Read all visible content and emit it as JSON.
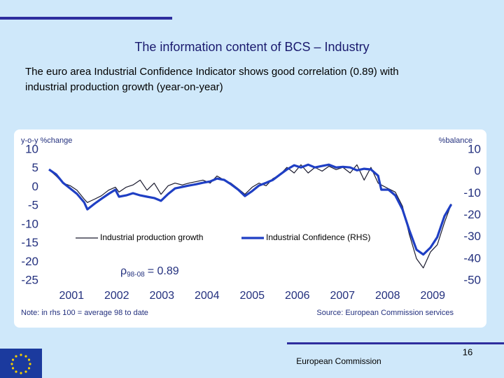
{
  "chart_data": {
    "type": "line",
    "title": "The information content of BCS – Industry",
    "subtitle": [
      "The euro area Industrial Confidence Indicator shows good correlation (0.89) with",
      "industrial production growth (year-on-year)"
    ],
    "y_label": "y-o-y %change",
    "y2_label": "%balance",
    "annotation": {
      "symbol": "ρ",
      "subscript": "98-08",
      "text": "= 0.89"
    },
    "note": "Note: in rhs 100 = average 98 to date",
    "source": "Source: European Commission services",
    "footer": "European Commission",
    "page_number": "16",
    "legend": "middle",
    "grid": false,
    "xlim": [
      2001,
      2010
    ],
    "xticks": [
      {
        "value": 2001.5,
        "label": "2001"
      },
      {
        "value": 2002.5,
        "label": "2002"
      },
      {
        "value": 2003.5,
        "label": "2003"
      },
      {
        "value": 2004.5,
        "label": "2004"
      },
      {
        "value": 2005.5,
        "label": "2005"
      },
      {
        "value": 2006.5,
        "label": "2006"
      },
      {
        "value": 2007.5,
        "label": "2007"
      },
      {
        "value": 2008.5,
        "label": "2008"
      },
      {
        "value": 2009.5,
        "label": "2009"
      }
    ],
    "ylim": [
      -25,
      10
    ],
    "yticks": [
      10,
      5,
      0,
      -5,
      -10,
      -15,
      -20,
      -25
    ],
    "y2lim": [
      -50,
      10
    ],
    "y2ticks": [
      10,
      0,
      -10,
      -20,
      -30,
      -40,
      -50
    ],
    "x": [
      2001.0,
      2001.16,
      2001.31,
      2001.47,
      2001.62,
      2001.78,
      2001.85,
      2002.01,
      2002.16,
      2002.32,
      2002.47,
      2002.55,
      2002.71,
      2002.86,
      2003.02,
      2003.17,
      2003.33,
      2003.48,
      2003.64,
      2003.79,
      2003.95,
      2004.1,
      2004.26,
      2004.41,
      2004.57,
      2004.72,
      2004.88,
      2005.03,
      2005.19,
      2005.34,
      2005.5,
      2005.65,
      2005.81,
      2005.96,
      2006.12,
      2006.27,
      2006.43,
      2006.58,
      2006.74,
      2006.89,
      2007.05,
      2007.2,
      2007.36,
      2007.51,
      2007.67,
      2007.82,
      2007.98,
      2008.13,
      2008.29,
      2008.36,
      2008.52,
      2008.67,
      2008.83,
      2008.98,
      2009.14,
      2009.29,
      2009.45,
      2009.6,
      2009.76,
      2009.91
    ],
    "series": [
      {
        "name": "Industrial production growth",
        "color": "#1a1a2e",
        "width": 1.2,
        "values": [
          4.7,
          3.0,
          1.1,
          0.4,
          -0.8,
          -3.2,
          -4.1,
          -3.2,
          -2.3,
          -0.8,
          0,
          -1.3,
          0,
          0.6,
          1.9,
          -0.8,
          1.1,
          -1.9,
          0.4,
          1.1,
          0.6,
          1.1,
          1.5,
          1.9,
          1.1,
          3.0,
          1.9,
          1.1,
          -0.4,
          -1.9,
          0,
          1.1,
          0.4,
          2.3,
          3.4,
          5.3,
          3.8,
          6.0,
          3.8,
          5.3,
          4.3,
          5.6,
          4.7,
          5.3,
          3.8,
          6.0,
          1.9,
          5.3,
          1.1,
          0.6,
          -0.4,
          -1.3,
          -5.1,
          -12.6,
          -19.1,
          -21.6,
          -17.3,
          -15.4,
          -9.4,
          -4.5
        ]
      },
      {
        "name": "Industrial Confidence (RHS)",
        "color": "#1f3fc4",
        "width": 3.2,
        "axis": "y2",
        "values": [
          1.0,
          -1.3,
          -5.1,
          -7.7,
          -10.2,
          -14.1,
          -17.3,
          -14.7,
          -12.5,
          -10.2,
          -8.3,
          -11.5,
          -10.9,
          -9.9,
          -10.9,
          -11.5,
          -12.1,
          -13.4,
          -10.2,
          -7.7,
          -7.0,
          -6.4,
          -5.8,
          -5.1,
          -4.5,
          -3.2,
          -3.8,
          -5.8,
          -8.3,
          -11.2,
          -8.9,
          -6.4,
          -5.1,
          -3.8,
          -1.3,
          1.0,
          2.9,
          1.9,
          3.2,
          1.9,
          2.6,
          3.2,
          1.9,
          2.2,
          1.9,
          0.6,
          1.3,
          1.0,
          -1.9,
          -8.3,
          -8.3,
          -10.9,
          -17.3,
          -26.8,
          -35.8,
          -38.0,
          -34.8,
          -30.0,
          -20.4,
          -15.0
        ]
      }
    ]
  }
}
